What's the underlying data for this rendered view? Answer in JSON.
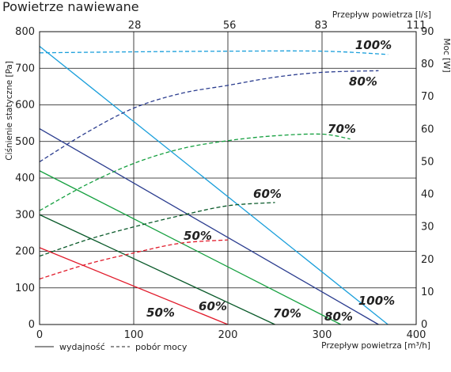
{
  "title": "Powietrze nawiewane",
  "chart_data": {
    "type": "line",
    "title": "Powietrze nawiewane",
    "x": {
      "label": "Przepływ powietrza [m³/h]",
      "range": [
        0,
        400
      ],
      "ticks": [
        0,
        100,
        200,
        300,
        400
      ]
    },
    "x_top": {
      "label": "Przepływ powietrza [l/s]",
      "range": [
        0,
        111
      ],
      "ticks": [
        28,
        56,
        83,
        111
      ]
    },
    "y": {
      "label": "Ciśnienie statyczne [Pa]",
      "range": [
        0,
        800
      ],
      "ticks": [
        0,
        100,
        200,
        300,
        400,
        500,
        600,
        700,
        800
      ]
    },
    "y_right": {
      "label": "Moc [W]",
      "range": [
        0,
        90
      ],
      "ticks": [
        0,
        10,
        20,
        30,
        40,
        50,
        60,
        70,
        80,
        90
      ]
    },
    "grid": true,
    "legend": {
      "position": "bottom-left",
      "solid_label": "wydajność",
      "dashed_label": "pobór mocy"
    },
    "series": [
      {
        "name": "50%",
        "kind": "pressure",
        "axis": "left",
        "color": "#e11b2b",
        "x": [
          0,
          200
        ],
        "y": [
          210,
          0
        ],
        "label": "50%"
      },
      {
        "name": "60%",
        "kind": "pressure",
        "axis": "left",
        "color": "#0a5a2a",
        "x": [
          0,
          250
        ],
        "y": [
          300,
          0
        ],
        "label": "60%"
      },
      {
        "name": "70%",
        "kind": "pressure",
        "axis": "left",
        "color": "#16a040",
        "x": [
          0,
          320
        ],
        "y": [
          420,
          0
        ],
        "label": "70%"
      },
      {
        "name": "80%",
        "kind": "pressure",
        "axis": "left",
        "color": "#2b3d8f",
        "x": [
          0,
          360
        ],
        "y": [
          535,
          0
        ],
        "label": "80%"
      },
      {
        "name": "100%",
        "kind": "pressure",
        "axis": "left",
        "color": "#1a9fdb",
        "x": [
          0,
          370
        ],
        "y": [
          760,
          0
        ],
        "label": "100%"
      },
      {
        "name": "50%",
        "kind": "power",
        "axis": "right",
        "color": "#e11b2b",
        "x": [
          0,
          50,
          100,
          150,
          200
        ],
        "y": [
          14,
          18.5,
          22,
          25,
          26
        ],
        "label": ""
      },
      {
        "name": "60%",
        "kind": "power",
        "axis": "right",
        "color": "#0a5a2a",
        "x": [
          0,
          50,
          100,
          150,
          200,
          250
        ],
        "y": [
          21,
          26,
          30,
          33.5,
          36.5,
          37.5
        ],
        "label": "60%"
      },
      {
        "name": "70%",
        "kind": "power",
        "axis": "right",
        "color": "#16a040",
        "x": [
          0,
          50,
          100,
          150,
          200,
          250,
          300,
          330
        ],
        "y": [
          35,
          43,
          49.5,
          54,
          56.5,
          58,
          58.5,
          57
        ],
        "label": "70%"
      },
      {
        "name": "80%",
        "kind": "power",
        "axis": "right",
        "color": "#2b3d8f",
        "x": [
          0,
          50,
          100,
          150,
          200,
          250,
          300,
          360
        ],
        "y": [
          50,
          59,
          66.5,
          71,
          73.5,
          76,
          77.5,
          78
        ],
        "label": "80%"
      },
      {
        "name": "100%",
        "kind": "power",
        "axis": "right",
        "color": "#1a9fdb",
        "x": [
          0,
          100,
          200,
          300,
          370
        ],
        "y": [
          83.5,
          83.8,
          84,
          84,
          83
        ],
        "label": "100%"
      }
    ]
  }
}
